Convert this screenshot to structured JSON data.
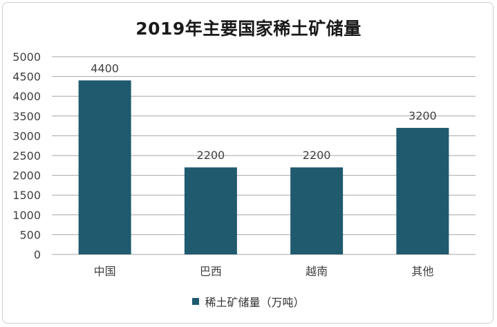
{
  "chart_data": {
    "type": "bar",
    "title": "2019年主要国家稀土矿储量",
    "categories": [
      "中国",
      "巴西",
      "越南",
      "其他"
    ],
    "series": [
      {
        "name": "稀土矿储量（万吨）",
        "values": [
          4400,
          2200,
          2200,
          3200
        ],
        "data_labels": [
          "4400",
          "2200",
          "2200",
          "3200"
        ]
      }
    ],
    "ylim": [
      0,
      5000
    ],
    "yticks": [
      "0",
      "500",
      "1000",
      "1500",
      "2000",
      "2500",
      "3000",
      "3500",
      "4000",
      "4500",
      "5000"
    ],
    "grid": true,
    "legend_position": "bottom",
    "colors": {
      "bar": "#1f5a6e",
      "grid": "#a6a6a6",
      "axis_text": "#404040"
    }
  }
}
